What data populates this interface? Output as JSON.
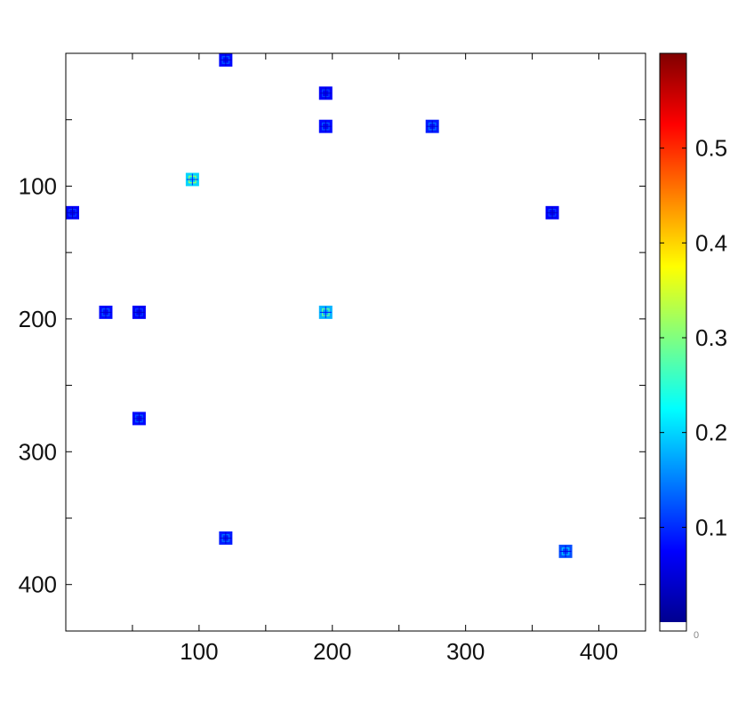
{
  "chart_data": {
    "type": "heatmap",
    "title": "",
    "xlabel": "",
    "ylabel": "",
    "xlim": [
      0,
      435
    ],
    "ylim": [
      0,
      435
    ],
    "y_inverted": true,
    "x_ticks": [
      100,
      200,
      300,
      400
    ],
    "y_ticks": [
      100,
      200,
      300,
      400
    ],
    "x_tick_labels": [
      "100",
      "200",
      "300",
      "400"
    ],
    "y_tick_labels": [
      "100",
      "200",
      "300",
      "400"
    ],
    "block_size": 10,
    "blocks": [
      {
        "x": 120,
        "y": 5,
        "value": 0.08
      },
      {
        "x": 195,
        "y": 30,
        "value": 0.07
      },
      {
        "x": 195,
        "y": 55,
        "value": 0.08
      },
      {
        "x": 275,
        "y": 55,
        "value": 0.09
      },
      {
        "x": 95,
        "y": 95,
        "value": 0.2
      },
      {
        "x": 5,
        "y": 120,
        "value": 0.07
      },
      {
        "x": 365,
        "y": 120,
        "value": 0.07
      },
      {
        "x": 30,
        "y": 195,
        "value": 0.08
      },
      {
        "x": 55,
        "y": 195,
        "value": 0.07
      },
      {
        "x": 195,
        "y": 195,
        "value": 0.18
      },
      {
        "x": 55,
        "y": 275,
        "value": 0.08
      },
      {
        "x": 120,
        "y": 365,
        "value": 0.09
      },
      {
        "x": 375,
        "y": 375,
        "value": 0.12
      }
    ],
    "colorbar": {
      "colormap": "jet",
      "min": 0,
      "max": 0.6,
      "tick_values": [
        0.1,
        0.2,
        0.3,
        0.4,
        0.5
      ],
      "tick_labels": [
        "0.1",
        "0.2",
        "0.3",
        "0.4",
        "0.5"
      ],
      "bottom_label": "0",
      "colors": [
        "#00008f",
        "#0000ff",
        "#0080ff",
        "#00ffff",
        "#80ff80",
        "#ffff00",
        "#ff8000",
        "#ff0000",
        "#800000"
      ]
    }
  }
}
